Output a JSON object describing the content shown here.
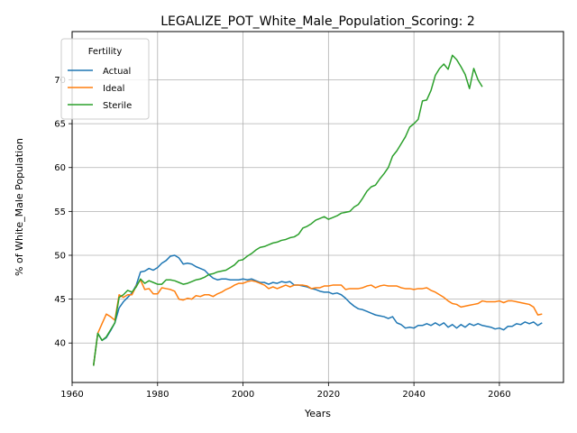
{
  "chart_data": {
    "type": "line",
    "title": "LEGALIZE_POT_White_Male_Population_Scoring: 2",
    "xlabel": "Years",
    "ylabel": "% of White_Male Population",
    "xlim": [
      1960,
      2075
    ],
    "ylim": [
      35.5,
      75.5
    ],
    "xticks": [
      1960,
      1980,
      2000,
      2020,
      2040,
      2060
    ],
    "yticks": [
      40,
      45,
      50,
      55,
      60,
      65,
      70
    ],
    "grid": true,
    "legend": {
      "title": "Fertility",
      "position": "top-left"
    },
    "series": [
      {
        "name": "Actual",
        "color": "#1f77b4",
        "points": [
          [
            1965,
            37.4
          ],
          [
            1966,
            41.1
          ],
          [
            1967,
            40.3
          ],
          [
            1968,
            40.6
          ],
          [
            1969,
            41.4
          ],
          [
            1970,
            42.3
          ],
          [
            1971,
            44.0
          ],
          [
            1972,
            44.7
          ],
          [
            1973,
            45.2
          ],
          [
            1974,
            45.7
          ],
          [
            1975,
            46.6
          ],
          [
            1976,
            48.1
          ],
          [
            1977,
            48.2
          ],
          [
            1978,
            48.5
          ],
          [
            1979,
            48.3
          ],
          [
            1980,
            48.6
          ],
          [
            1981,
            49.1
          ],
          [
            1982,
            49.4
          ],
          [
            1983,
            49.9
          ],
          [
            1984,
            50.0
          ],
          [
            1985,
            49.7
          ],
          [
            1986,
            49.0
          ],
          [
            1987,
            49.1
          ],
          [
            1988,
            49.0
          ],
          [
            1989,
            48.7
          ],
          [
            1990,
            48.5
          ],
          [
            1991,
            48.3
          ],
          [
            1992,
            47.8
          ],
          [
            1993,
            47.4
          ],
          [
            1994,
            47.2
          ],
          [
            1995,
            47.3
          ],
          [
            1996,
            47.3
          ],
          [
            1997,
            47.2
          ],
          [
            1998,
            47.2
          ],
          [
            1999,
            47.2
          ],
          [
            2000,
            47.3
          ],
          [
            2001,
            47.2
          ],
          [
            2002,
            47.3
          ],
          [
            2003,
            47.1
          ],
          [
            2004,
            46.9
          ],
          [
            2005,
            46.9
          ],
          [
            2006,
            46.7
          ],
          [
            2007,
            46.9
          ],
          [
            2008,
            46.8
          ],
          [
            2009,
            47.0
          ],
          [
            2010,
            46.9
          ],
          [
            2011,
            47.0
          ],
          [
            2012,
            46.6
          ],
          [
            2013,
            46.6
          ],
          [
            2014,
            46.5
          ],
          [
            2015,
            46.4
          ],
          [
            2016,
            46.2
          ],
          [
            2017,
            46.1
          ],
          [
            2018,
            45.9
          ],
          [
            2019,
            45.8
          ],
          [
            2020,
            45.8
          ],
          [
            2021,
            45.6
          ],
          [
            2022,
            45.7
          ],
          [
            2023,
            45.5
          ],
          [
            2024,
            45.1
          ],
          [
            2025,
            44.6
          ],
          [
            2026,
            44.2
          ],
          [
            2027,
            43.9
          ],
          [
            2028,
            43.8
          ],
          [
            2029,
            43.6
          ],
          [
            2030,
            43.4
          ],
          [
            2031,
            43.2
          ],
          [
            2032,
            43.1
          ],
          [
            2033,
            43.0
          ],
          [
            2034,
            42.8
          ],
          [
            2035,
            43.0
          ],
          [
            2036,
            42.3
          ],
          [
            2037,
            42.1
          ],
          [
            2038,
            41.7
          ],
          [
            2039,
            41.8
          ],
          [
            2040,
            41.7
          ],
          [
            2041,
            42.0
          ],
          [
            2042,
            42.0
          ],
          [
            2043,
            42.2
          ],
          [
            2044,
            42.0
          ],
          [
            2045,
            42.3
          ],
          [
            2046,
            42.0
          ],
          [
            2047,
            42.3
          ],
          [
            2048,
            41.8
          ],
          [
            2049,
            42.1
          ],
          [
            2050,
            41.7
          ],
          [
            2051,
            42.1
          ],
          [
            2052,
            41.8
          ],
          [
            2053,
            42.2
          ],
          [
            2054,
            42.0
          ],
          [
            2055,
            42.2
          ],
          [
            2056,
            42.0
          ],
          [
            2057,
            41.9
          ],
          [
            2058,
            41.8
          ],
          [
            2059,
            41.6
          ],
          [
            2060,
            41.7
          ],
          [
            2061,
            41.5
          ],
          [
            2062,
            41.9
          ],
          [
            2063,
            41.9
          ],
          [
            2064,
            42.2
          ],
          [
            2065,
            42.1
          ],
          [
            2066,
            42.4
          ],
          [
            2067,
            42.2
          ],
          [
            2068,
            42.4
          ],
          [
            2069,
            42.0
          ],
          [
            2070,
            42.3
          ]
        ]
      },
      {
        "name": "Ideal",
        "color": "#ff7f0e",
        "points": [
          [
            1965,
            37.4
          ],
          [
            1966,
            41.1
          ],
          [
            1967,
            42.2
          ],
          [
            1968,
            43.3
          ],
          [
            1969,
            43.0
          ],
          [
            1970,
            42.6
          ],
          [
            1971,
            45.5
          ],
          [
            1972,
            45.2
          ],
          [
            1973,
            45.5
          ],
          [
            1974,
            45.5
          ],
          [
            1975,
            46.5
          ],
          [
            1976,
            47.2
          ],
          [
            1977,
            46.1
          ],
          [
            1978,
            46.2
          ],
          [
            1979,
            45.6
          ],
          [
            1980,
            45.6
          ],
          [
            1981,
            46.3
          ],
          [
            1982,
            46.2
          ],
          [
            1983,
            46.1
          ],
          [
            1984,
            45.9
          ],
          [
            1985,
            45.0
          ],
          [
            1986,
            44.9
          ],
          [
            1987,
            45.1
          ],
          [
            1988,
            45.0
          ],
          [
            1989,
            45.4
          ],
          [
            1990,
            45.3
          ],
          [
            1991,
            45.5
          ],
          [
            1992,
            45.5
          ],
          [
            1993,
            45.3
          ],
          [
            1994,
            45.6
          ],
          [
            1995,
            45.8
          ],
          [
            1996,
            46.1
          ],
          [
            1997,
            46.3
          ],
          [
            1998,
            46.6
          ],
          [
            1999,
            46.8
          ],
          [
            2000,
            46.8
          ],
          [
            2001,
            47.0
          ],
          [
            2002,
            47.1
          ],
          [
            2003,
            47.0
          ],
          [
            2004,
            46.8
          ],
          [
            2005,
            46.6
          ],
          [
            2006,
            46.2
          ],
          [
            2007,
            46.4
          ],
          [
            2008,
            46.2
          ],
          [
            2009,
            46.4
          ],
          [
            2010,
            46.6
          ],
          [
            2011,
            46.4
          ],
          [
            2012,
            46.6
          ],
          [
            2013,
            46.6
          ],
          [
            2014,
            46.6
          ],
          [
            2015,
            46.5
          ],
          [
            2016,
            46.2
          ],
          [
            2017,
            46.3
          ],
          [
            2018,
            46.3
          ],
          [
            2019,
            46.5
          ],
          [
            2020,
            46.5
          ],
          [
            2021,
            46.6
          ],
          [
            2022,
            46.6
          ],
          [
            2023,
            46.6
          ],
          [
            2024,
            46.1
          ],
          [
            2025,
            46.2
          ],
          [
            2026,
            46.2
          ],
          [
            2027,
            46.2
          ],
          [
            2028,
            46.3
          ],
          [
            2029,
            46.5
          ],
          [
            2030,
            46.6
          ],
          [
            2031,
            46.3
          ],
          [
            2032,
            46.5
          ],
          [
            2033,
            46.6
          ],
          [
            2034,
            46.5
          ],
          [
            2035,
            46.5
          ],
          [
            2036,
            46.5
          ],
          [
            2037,
            46.3
          ],
          [
            2038,
            46.2
          ],
          [
            2039,
            46.2
          ],
          [
            2040,
            46.1
          ],
          [
            2041,
            46.2
          ],
          [
            2042,
            46.2
          ],
          [
            2043,
            46.3
          ],
          [
            2044,
            46.0
          ],
          [
            2045,
            45.8
          ],
          [
            2046,
            45.5
          ],
          [
            2047,
            45.2
          ],
          [
            2048,
            44.8
          ],
          [
            2049,
            44.5
          ],
          [
            2050,
            44.4
          ],
          [
            2051,
            44.1
          ],
          [
            2052,
            44.2
          ],
          [
            2053,
            44.3
          ],
          [
            2054,
            44.4
          ],
          [
            2055,
            44.5
          ],
          [
            2056,
            44.8
          ],
          [
            2057,
            44.7
          ],
          [
            2058,
            44.7
          ],
          [
            2059,
            44.7
          ],
          [
            2060,
            44.8
          ],
          [
            2061,
            44.6
          ],
          [
            2062,
            44.8
          ],
          [
            2063,
            44.8
          ],
          [
            2064,
            44.7
          ],
          [
            2065,
            44.6
          ],
          [
            2066,
            44.5
          ],
          [
            2067,
            44.4
          ],
          [
            2068,
            44.1
          ],
          [
            2069,
            43.2
          ],
          [
            2070,
            43.3
          ]
        ]
      },
      {
        "name": "Sterile",
        "color": "#2ca02c",
        "points": [
          [
            1965,
            37.4
          ],
          [
            1966,
            41.1
          ],
          [
            1967,
            40.3
          ],
          [
            1968,
            40.7
          ],
          [
            1969,
            41.5
          ],
          [
            1970,
            42.3
          ],
          [
            1971,
            45.2
          ],
          [
            1972,
            45.5
          ],
          [
            1973,
            46.0
          ],
          [
            1974,
            45.8
          ],
          [
            1975,
            46.4
          ],
          [
            1976,
            47.3
          ],
          [
            1977,
            46.8
          ],
          [
            1978,
            47.1
          ],
          [
            1979,
            46.9
          ],
          [
            1980,
            46.7
          ],
          [
            1981,
            46.7
          ],
          [
            1982,
            47.2
          ],
          [
            1983,
            47.2
          ],
          [
            1984,
            47.1
          ],
          [
            1985,
            46.9
          ],
          [
            1986,
            46.7
          ],
          [
            1987,
            46.8
          ],
          [
            1988,
            47.0
          ],
          [
            1989,
            47.2
          ],
          [
            1990,
            47.3
          ],
          [
            1991,
            47.5
          ],
          [
            1992,
            47.8
          ],
          [
            1993,
            47.9
          ],
          [
            1994,
            48.1
          ],
          [
            1995,
            48.2
          ],
          [
            1996,
            48.3
          ],
          [
            1997,
            48.6
          ],
          [
            1998,
            48.9
          ],
          [
            1999,
            49.4
          ],
          [
            2000,
            49.5
          ],
          [
            2001,
            49.9
          ],
          [
            2002,
            50.2
          ],
          [
            2003,
            50.6
          ],
          [
            2004,
            50.9
          ],
          [
            2005,
            51.0
          ],
          [
            2006,
            51.2
          ],
          [
            2007,
            51.4
          ],
          [
            2008,
            51.5
          ],
          [
            2009,
            51.7
          ],
          [
            2010,
            51.8
          ],
          [
            2011,
            52.0
          ],
          [
            2012,
            52.1
          ],
          [
            2013,
            52.4
          ],
          [
            2014,
            53.1
          ],
          [
            2015,
            53.3
          ],
          [
            2016,
            53.6
          ],
          [
            2017,
            54.0
          ],
          [
            2018,
            54.2
          ],
          [
            2019,
            54.4
          ],
          [
            2020,
            54.1
          ],
          [
            2021,
            54.3
          ],
          [
            2022,
            54.5
          ],
          [
            2023,
            54.8
          ],
          [
            2024,
            54.9
          ],
          [
            2025,
            55.0
          ],
          [
            2026,
            55.5
          ],
          [
            2027,
            55.8
          ],
          [
            2028,
            56.5
          ],
          [
            2029,
            57.3
          ],
          [
            2030,
            57.8
          ],
          [
            2031,
            58.0
          ],
          [
            2032,
            58.7
          ],
          [
            2033,
            59.3
          ],
          [
            2034,
            60.0
          ],
          [
            2035,
            61.3
          ],
          [
            2036,
            61.9
          ],
          [
            2037,
            62.7
          ],
          [
            2038,
            63.5
          ],
          [
            2039,
            64.6
          ],
          [
            2040,
            65.0
          ],
          [
            2041,
            65.5
          ],
          [
            2042,
            67.6
          ],
          [
            2043,
            67.7
          ],
          [
            2044,
            68.8
          ],
          [
            2045,
            70.5
          ],
          [
            2046,
            71.3
          ],
          [
            2047,
            71.8
          ],
          [
            2048,
            71.2
          ],
          [
            2049,
            72.8
          ],
          [
            2050,
            72.3
          ],
          [
            2051,
            71.5
          ],
          [
            2052,
            70.6
          ],
          [
            2053,
            69.0
          ],
          [
            2054,
            71.3
          ],
          [
            2055,
            70.0
          ],
          [
            2056,
            69.2
          ]
        ]
      }
    ]
  }
}
